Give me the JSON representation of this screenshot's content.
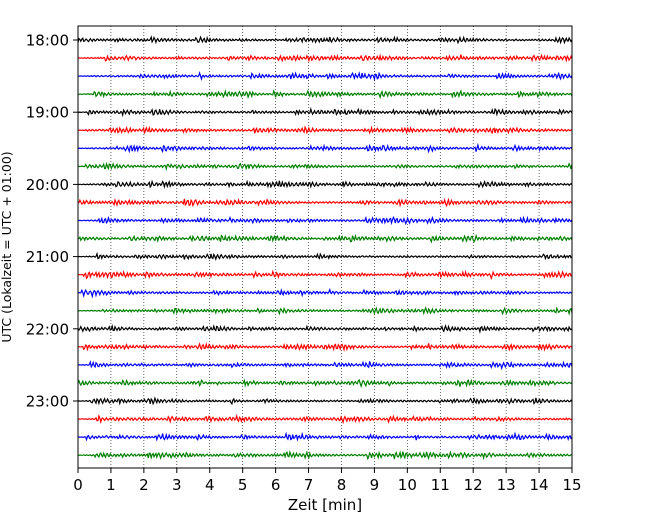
{
  "chart_data": {
    "type": "line",
    "xlabel": "Zeit  [min]",
    "ylabel": "UTC (Lokalzeit = UTC + 01:00)",
    "xlim": [
      0,
      15
    ],
    "x_ticks": [
      0,
      1,
      2,
      3,
      4,
      5,
      6,
      7,
      8,
      9,
      10,
      11,
      12,
      13,
      14,
      15
    ],
    "x_tick_labels": [
      "0",
      "1",
      "2",
      "3",
      "4",
      "5",
      "6",
      "7",
      "8",
      "9",
      "10",
      "11",
      "12",
      "13",
      "14",
      "15"
    ],
    "y_tick_labels": [
      "18:00",
      "19:00",
      "20:00",
      "21:00",
      "22:00",
      "23:00"
    ],
    "grid": "vertical-dotted",
    "traces_per_hour": 4,
    "trace_colors": [
      "#000000",
      "#ff0000",
      "#0000ff",
      "#008000"
    ],
    "series": [
      {
        "start": "18:00",
        "color": "#000000"
      },
      {
        "start": "18:15",
        "color": "#ff0000"
      },
      {
        "start": "18:30",
        "color": "#0000ff"
      },
      {
        "start": "18:45",
        "color": "#008000"
      },
      {
        "start": "19:00",
        "color": "#000000"
      },
      {
        "start": "19:15",
        "color": "#ff0000"
      },
      {
        "start": "19:30",
        "color": "#0000ff"
      },
      {
        "start": "19:45",
        "color": "#008000"
      },
      {
        "start": "20:00",
        "color": "#000000"
      },
      {
        "start": "20:15",
        "color": "#ff0000"
      },
      {
        "start": "20:30",
        "color": "#0000ff"
      },
      {
        "start": "20:45",
        "color": "#008000"
      },
      {
        "start": "21:00",
        "color": "#000000"
      },
      {
        "start": "21:15",
        "color": "#ff0000"
      },
      {
        "start": "21:30",
        "color": "#0000ff"
      },
      {
        "start": "21:45",
        "color": "#008000"
      },
      {
        "start": "22:00",
        "color": "#000000"
      },
      {
        "start": "22:15",
        "color": "#ff0000"
      },
      {
        "start": "22:30",
        "color": "#0000ff"
      },
      {
        "start": "22:45",
        "color": "#008000"
      },
      {
        "start": "23:00",
        "color": "#000000"
      },
      {
        "start": "23:15",
        "color": "#ff0000"
      },
      {
        "start": "23:30",
        "color": "#0000ff"
      },
      {
        "start": "23:45",
        "color": "#008000"
      }
    ]
  }
}
